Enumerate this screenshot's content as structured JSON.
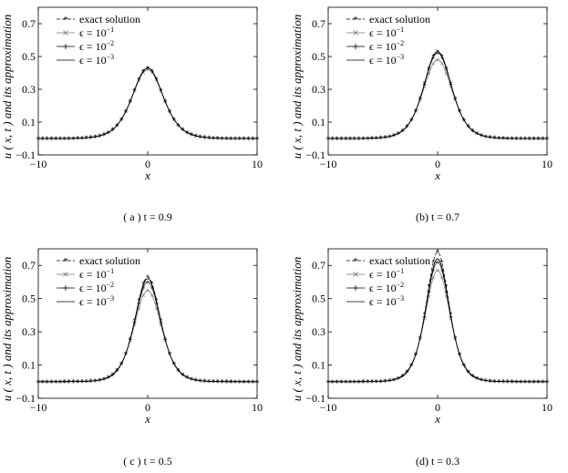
{
  "figure": {
    "common": {
      "ylabel": "u ( x, t )  and its approximation",
      "xlabel": "x",
      "xlim": [
        -10,
        10
      ],
      "ylim": [
        -0.1,
        0.8
      ],
      "xticks": [
        "−10",
        "0",
        "10"
      ],
      "yticks": [
        "−0.1",
        "0.1",
        "0.3",
        "0.5",
        "0.7"
      ],
      "legend": [
        {
          "label": "exact solution",
          "style": "dash-star"
        },
        {
          "label": "ϵ = 10",
          "sup": "−1",
          "style": "x-marker"
        },
        {
          "label": "ϵ = 10",
          "sup": "−2",
          "style": "plus-marker"
        },
        {
          "label": "ϵ = 10",
          "sup": "−3",
          "style": "plain"
        }
      ]
    }
  },
  "chart_data": [
    {
      "type": "line",
      "caption": "( a )  t  =  0.9",
      "xlabel": "x",
      "ylabel": "u ( x, t )  and its approximation",
      "xlim": [
        -10,
        10
      ],
      "ylim": [
        -0.1,
        0.8
      ],
      "legend_position": "top-left",
      "series": [
        {
          "name": "exact solution",
          "amplitude": 0.43
        },
        {
          "name": "ϵ = 10^−1",
          "amplitude": 0.42
        },
        {
          "name": "ϵ = 10^−2",
          "amplitude": 0.43
        },
        {
          "name": "ϵ = 10^−3",
          "amplitude": 0.43
        }
      ]
    },
    {
      "type": "line",
      "caption": "(b)  t  =  0.7",
      "xlabel": "x",
      "ylabel": "u ( x, t )  and its approximation",
      "xlim": [
        -10,
        10
      ],
      "ylim": [
        -0.1,
        0.8
      ],
      "legend_position": "top-left",
      "series": [
        {
          "name": "exact solution",
          "amplitude": 0.53
        },
        {
          "name": "ϵ = 10^−1",
          "amplitude": 0.48
        },
        {
          "name": "ϵ = 10^−2",
          "amplitude": 0.52
        },
        {
          "name": "ϵ = 10^−3",
          "amplitude": 0.53
        }
      ]
    },
    {
      "type": "line",
      "caption": "( c )  t  =  0.5",
      "xlabel": "x",
      "ylabel": "u ( x, t )  and its approximation",
      "xlim": [
        -10,
        10
      ],
      "ylim": [
        -0.1,
        0.8
      ],
      "legend_position": "top-left",
      "series": [
        {
          "name": "exact solution",
          "amplitude": 0.63
        },
        {
          "name": "ϵ = 10^−1",
          "amplitude": 0.55
        },
        {
          "name": "ϵ = 10^−2",
          "amplitude": 0.6
        },
        {
          "name": "ϵ = 10^−3",
          "amplitude": 0.62
        }
      ]
    },
    {
      "type": "line",
      "caption": "(d)  t  =  0.3",
      "xlabel": "x",
      "ylabel": "u ( x, t )  and its approximation",
      "xlim": [
        -10,
        10
      ],
      "ylim": [
        -0.1,
        0.8
      ],
      "legend_position": "top-left",
      "series": [
        {
          "name": "exact solution",
          "amplitude": 0.78
        },
        {
          "name": "ϵ = 10^−1",
          "amplitude": 0.67
        },
        {
          "name": "ϵ = 10^−2",
          "amplitude": 0.72
        },
        {
          "name": "ϵ = 10^−3",
          "amplitude": 0.74
        }
      ]
    }
  ]
}
